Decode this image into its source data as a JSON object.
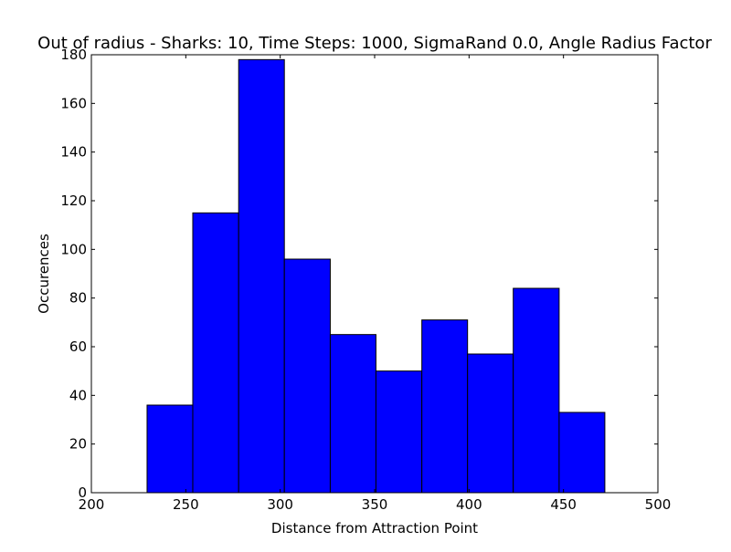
{
  "chart_data": {
    "type": "bar",
    "title": "Out of radius - Sharks: 10, Time Steps: 1000, SigmaRand 0.0, Angle Radius Factor",
    "xlabel": "Distance from Attraction Point",
    "ylabel": "Occurences",
    "xlim": [
      200,
      500
    ],
    "ylim": [
      0,
      180
    ],
    "xticks": [
      200,
      250,
      300,
      350,
      400,
      450,
      500
    ],
    "yticks": [
      0,
      20,
      40,
      60,
      80,
      100,
      120,
      140,
      160,
      180
    ],
    "bin_edges": [
      229.5,
      253.7,
      278.0,
      302.2,
      326.5,
      350.7,
      375.0,
      399.2,
      423.4,
      447.7,
      471.9
    ],
    "values": [
      36,
      115,
      178,
      96,
      65,
      50,
      71,
      57,
      84,
      33
    ],
    "bar_color": "#0000ff",
    "edge_color": "#000000",
    "grid": false,
    "legend": "none"
  }
}
